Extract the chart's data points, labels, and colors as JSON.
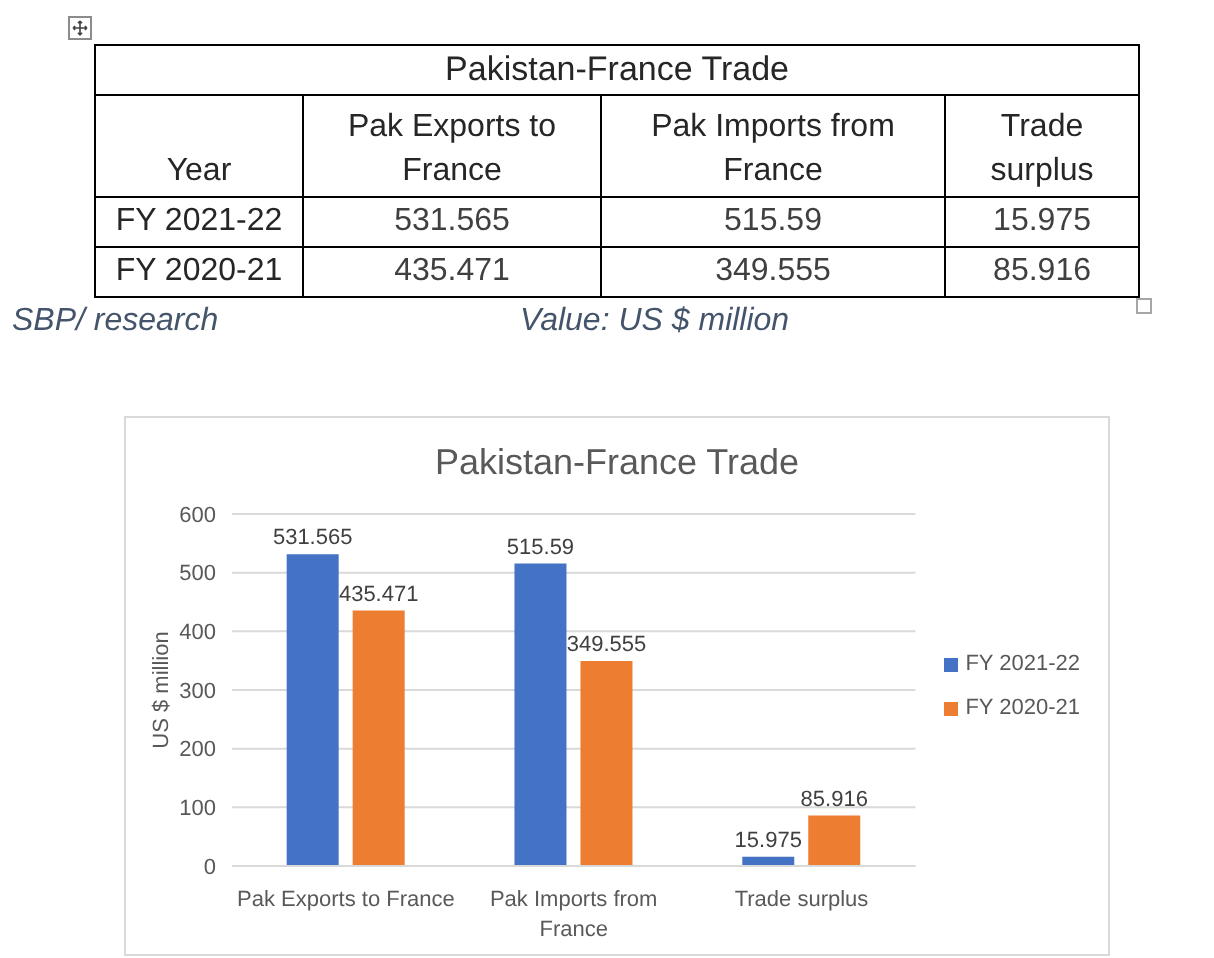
{
  "chart_data": [
    {
      "type": "other",
      "title": "Pakistan-France Trade",
      "legend_title": "Year",
      "categories": [
        "Pak Exports to France",
        "Pak Imports from France",
        "Trade surplus"
      ],
      "series": [
        {
          "name": "FY 2021-22",
          "values": [
            531.565,
            515.59,
            15.975
          ]
        },
        {
          "name": "FY 2020-21",
          "values": [
            435.471,
            349.555,
            85.916
          ]
        }
      ],
      "data_labels": true,
      "annotations": [
        "SBP/ research",
        "Value: US $ million"
      ]
    },
    {
      "type": "bar",
      "title": "Pakistan-France Trade",
      "ylabel": "US $ million",
      "categories": [
        "Pak Exports to France",
        "Pak Imports from France",
        "Trade surplus"
      ],
      "series": [
        {
          "name": "FY 2021-22",
          "color": "#4472c4",
          "values": [
            531.565,
            515.59,
            15.975
          ]
        },
        {
          "name": "FY 2020-21",
          "color": "#ed7d31",
          "values": [
            435.471,
            349.555,
            85.916
          ]
        }
      ],
      "ylim": [
        0,
        600
      ],
      "yticks": [
        0,
        100,
        200,
        300,
        400,
        500,
        600
      ],
      "grid": "y",
      "legend": "right",
      "data_labels": true
    }
  ]
}
